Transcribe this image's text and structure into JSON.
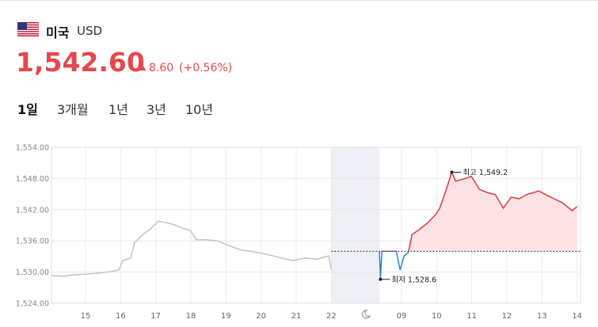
{
  "header": {
    "country": "미국",
    "currency": "USD",
    "price": "1,542.60",
    "change": "8.60",
    "change_pct": "(+0.56%)"
  },
  "tabs": [
    "1일",
    "3개월",
    "1년",
    "3년",
    "10년"
  ],
  "chart_data": {
    "type": "line",
    "xlim": [
      -0.97,
      14.1
    ],
    "xticks": [
      {
        "value": 0,
        "label": "15"
      },
      {
        "value": 1,
        "label": "16"
      },
      {
        "value": 2,
        "label": "17"
      },
      {
        "value": 3,
        "label": "18"
      },
      {
        "value": 4,
        "label": "19"
      },
      {
        "value": 5,
        "label": "20"
      },
      {
        "value": 6,
        "label": "21"
      },
      {
        "value": 7,
        "label": "22"
      },
      {
        "value": 9,
        "label": "09"
      },
      {
        "value": 10,
        "label": "10"
      },
      {
        "value": 11,
        "label": "11"
      },
      {
        "value": 12,
        "label": "12"
      },
      {
        "value": 13,
        "label": "13"
      },
      {
        "value": 14,
        "label": "14"
      }
    ],
    "ylim": [
      1524,
      1554
    ],
    "yticks": [
      {
        "value": 1524,
        "label": "1,524.00"
      },
      {
        "value": 1530,
        "label": "1,530.00"
      },
      {
        "value": 1536,
        "label": "1,536.00"
      },
      {
        "value": 1542,
        "label": "1,542.00"
      },
      {
        "value": 1548,
        "label": "1,548.00"
      },
      {
        "value": 1554,
        "label": "1,554.00"
      }
    ],
    "grid": true,
    "baseline": 1534.0,
    "series": [
      {
        "color": "#c4c4c8",
        "x": [
          -0.97,
          -0.63,
          -0.29,
          0,
          0.38,
          0.72,
          0.95,
          1.06,
          1.29,
          1.4,
          1.63,
          1.85,
          2.08,
          2.3,
          2.53,
          2.75,
          2.98,
          3.16,
          3.43,
          3.77,
          4.11,
          4.45,
          4.79,
          5.24,
          5.58,
          5.91,
          6.25,
          6.59,
          6.93,
          7.0
        ],
        "values": [
          1529.3,
          1529.2,
          1529.5,
          1529.6,
          1529.8,
          1530.1,
          1530.4,
          1532.2,
          1532.7,
          1535.7,
          1537.2,
          1538.3,
          1539.8,
          1539.5,
          1539.1,
          1538.5,
          1538.0,
          1536.2,
          1536.2,
          1536.0,
          1535.0,
          1534.2,
          1533.9,
          1533.3,
          1532.7,
          1532.2,
          1532.7,
          1532.5,
          1533.1,
          1530.4
        ]
      },
      {
        "color": "#e0383e",
        "below_color": "#2f80ed",
        "fill": "#fde3e3",
        "x": [
          8.37,
          8.4,
          8.44,
          8.85,
          8.96,
          9.07,
          9.19,
          9.3,
          9.53,
          9.75,
          9.98,
          10.09,
          10.2,
          10.32,
          10.43,
          10.54,
          10.77,
          10.99,
          11.22,
          11.44,
          11.67,
          11.9,
          12.12,
          12.35,
          12.57,
          12.91,
          13.25,
          13.59,
          13.86,
          14.0
        ],
        "values": [
          1534.0,
          1528.6,
          1534.0,
          1534.0,
          1530.4,
          1533.1,
          1533.7,
          1537.2,
          1538.3,
          1539.5,
          1541.1,
          1542.3,
          1544.4,
          1546.8,
          1549.2,
          1547.5,
          1547.9,
          1548.4,
          1545.9,
          1545.3,
          1544.9,
          1542.3,
          1544.4,
          1544.1,
          1544.9,
          1545.6,
          1544.4,
          1543.3,
          1541.8,
          1542.6
        ]
      }
    ],
    "annotations": [
      {
        "text": "최고 1,549.2",
        "x": 10.43,
        "y": 1549.2
      },
      {
        "text": "최저 1,528.6",
        "x": 8.4,
        "y": 1528.6
      }
    ]
  }
}
